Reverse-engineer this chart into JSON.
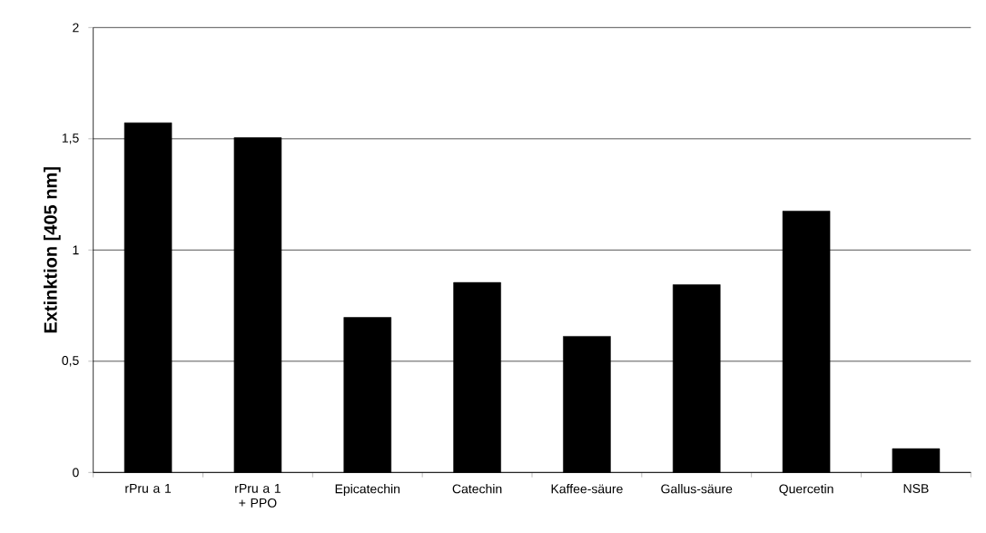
{
  "chart_data": {
    "type": "bar",
    "ylabel": "Extinktion [405 nm]",
    "categories": [
      "rPru a 1",
      "rPru a 1 + PPO",
      "Epicatechin",
      "Catechin",
      "Kaffee-säure",
      "Gallus-säure",
      "Quercetin",
      "NSB"
    ],
    "values": [
      1.572,
      1.505,
      0.697,
      0.854,
      0.612,
      0.844,
      1.175,
      0.107
    ],
    "color": "#000000",
    "ylim": [
      0,
      2
    ],
    "yticks": [
      0,
      {
        "value": 0.5,
        "label": "0,5"
      },
      1,
      {
        "value": 1.5,
        "label": "1,5"
      },
      2
    ],
    "grid": "y"
  }
}
